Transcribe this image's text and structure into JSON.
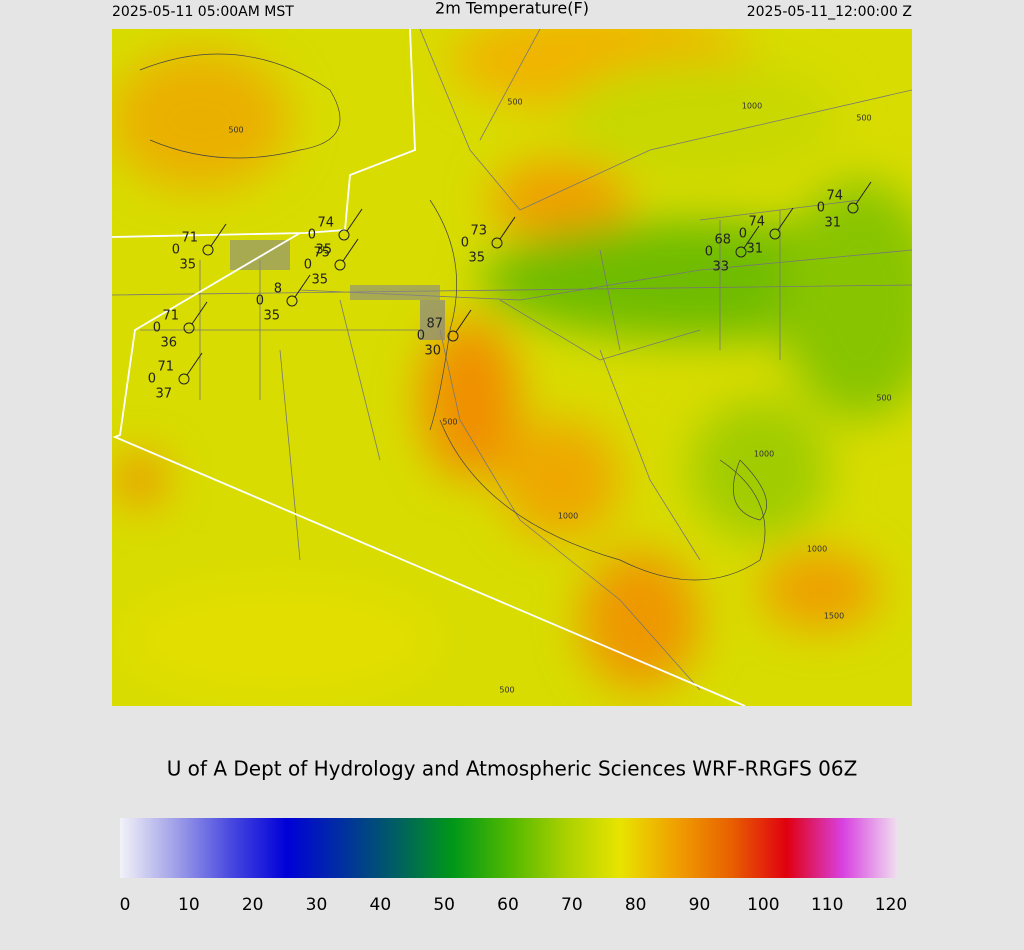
{
  "header": {
    "left": "2025-05-11 05:00AM MST",
    "title": "2m Temperature(F)",
    "right": "2025-05-11_12:00:00 Z"
  },
  "map": {
    "stations": [
      {
        "temperature": 71,
        "pressure": 0,
        "dewpoint": 35
      },
      {
        "temperature": 74,
        "pressure": 0,
        "dewpoint": 35
      },
      {
        "temperature": 75,
        "pressure": 0,
        "dewpoint": 35
      },
      {
        "temperature": 8,
        "pressure": 0,
        "dewpoint": 35
      },
      {
        "temperature": 71,
        "pressure": 0,
        "dewpoint": 36
      },
      {
        "temperature": 71,
        "pressure": 0,
        "dewpoint": 37
      },
      {
        "temperature": 87,
        "pressure": 0,
        "dewpoint": 30
      },
      {
        "temperature": 73,
        "pressure": 0,
        "dewpoint": 35
      },
      {
        "temperature": 68,
        "pressure": 0,
        "dewpoint": 33
      },
      {
        "temperature": 74,
        "pressure": 0,
        "dewpoint": 31
      },
      {
        "temperature": 74,
        "pressure": 0,
        "dewpoint": 31
      }
    ],
    "contour_labels": [
      500,
      500,
      1000,
      500,
      500,
      500,
      1000,
      1000,
      1000,
      1500,
      500
    ]
  },
  "footer": {
    "credit": "U of A Dept of Hydrology and Atmospheric Sciences WRF-RRGFS 06Z"
  },
  "colorbar": {
    "range": [
      0,
      120
    ],
    "ticks": [
      0,
      10,
      20,
      30,
      40,
      50,
      60,
      70,
      80,
      90,
      100,
      110,
      120
    ],
    "colors": [
      "#f2f2f8",
      "#a0a0e8",
      "#4848e0",
      "#0000d8",
      "#0030a0",
      "#006060",
      "#009818",
      "#50b800",
      "#a8d000",
      "#e8e400",
      "#f0a000",
      "#e86000",
      "#e00010",
      "#d840e0",
      "#f0e0f0"
    ]
  }
}
